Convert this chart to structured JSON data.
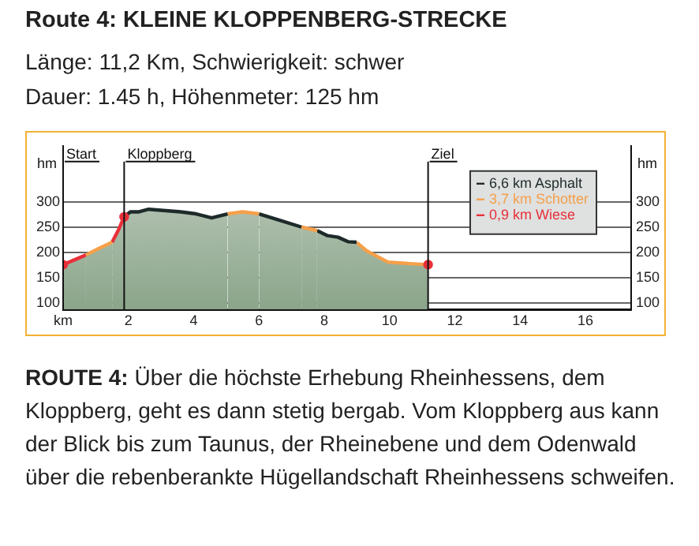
{
  "chart_data": {
    "type": "area",
    "title": "Route 4: KLEINE KLOPPENBERG-STRECKE",
    "subtitle": "Länge: 11,2 Km, Schwierigkeit: schwer\nDauer: 1.45 h, Höhenmeter: 125 hm",
    "annotations": [
      "ROUTE 4: Über die höchste Erhebung Rheinhessens, dem Kloppberg, geht es dann stetig bergab. Vom Kloppberg aus kann der Blick bis zum Taunus, der Rheinebene und dem Odenwald über die rebenberankte Hügellandschaft Rheinhessens schweifen."
    ],
    "ylabel": "hm",
    "y2label": "hm",
    "series": [
      {
        "name": "6,6 km Asphalt",
        "color": "#1e2a2a",
        "x": [
          1.87,
          2.06,
          2.33,
          2.62,
          3.6,
          4.07,
          4.55,
          5.04
        ],
        "values": [
          270,
          280,
          280,
          285,
          280,
          276,
          268,
          276
        ]
      },
      {
        "name": "3,7 km Schotter",
        "color": "#f5a04a",
        "x": [
          0.7,
          1.1,
          1.5
        ],
        "values": [
          195,
          208,
          220
        ]
      },
      {
        "name": "0,9 km Wiese",
        "color": "#e8303a",
        "x": [
          0,
          0.7
        ],
        "values": [
          176,
          195
        ]
      },
      {
        "color": "#e8303a",
        "x": [
          1.5,
          1.7,
          1.87
        ],
        "values": [
          220,
          245,
          270
        ]
      },
      {
        "color": "#f5a04a",
        "x": [
          5.04,
          5.5,
          6.0
        ],
        "values": [
          276,
          280,
          276
        ]
      },
      {
        "color": "#1e2a2a",
        "x": [
          6.0,
          6.65,
          7.3
        ],
        "values": [
          276,
          263,
          250
        ]
      },
      {
        "color": "#f5a04a",
        "x": [
          7.3,
          7.78
        ],
        "values": [
          250,
          243
        ]
      },
      {
        "color": "#1e2a2a",
        "x": [
          7.78,
          8.1,
          8.42,
          8.74,
          8.99
        ],
        "values": [
          243,
          233,
          230,
          221,
          220
        ]
      },
      {
        "color": "#f5a04a",
        "x": [
          8.99,
          9.3,
          9.95,
          10.6,
          11.18
        ],
        "values": [
          220,
          203,
          181,
          178,
          176
        ]
      },
      {
        "type": "scatter",
        "marker": "circle",
        "color": "#e8303a",
        "x": [
          0,
          1.87,
          11.18
        ],
        "values": [
          176,
          270,
          176
        ]
      }
    ],
    "ref_lines": [
      {
        "axis": "x",
        "value": 0,
        "label": "Start"
      },
      {
        "axis": "x",
        "value": 1.87,
        "label": "Kloppberg"
      },
      {
        "axis": "x",
        "value": 11.18,
        "label": "Ziel"
      }
    ],
    "xlim": [
      0,
      17.4
    ],
    "xticks": [
      {
        "value": 0,
        "label": "km"
      },
      2,
      4,
      6,
      8,
      10,
      12,
      14,
      16
    ],
    "ylim": [
      88,
      410
    ],
    "yticks": [
      100,
      150,
      200,
      250,
      300
    ],
    "y2lim": [
      88,
      410
    ],
    "y2ticks": [
      100,
      150,
      200,
      250,
      300
    ],
    "grid": "y",
    "legend": "top right",
    "marker": "none"
  }
}
